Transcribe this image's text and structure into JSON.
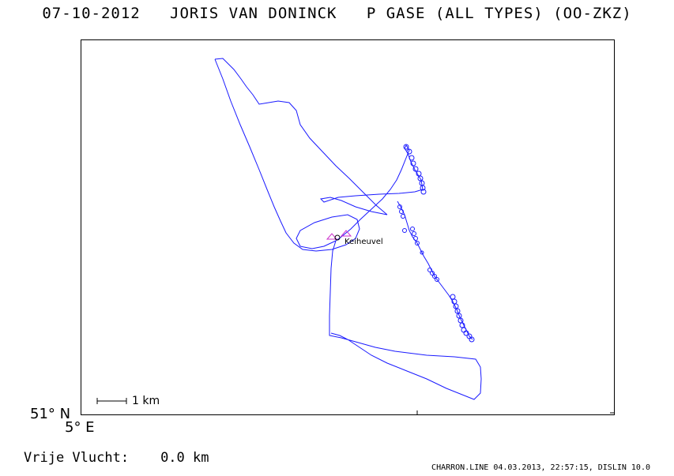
{
  "header": {
    "title": "07-10-2012   JORIS VAN DONINCK   P GASE (ALL TYPES) (OO-ZKZ)"
  },
  "map": {
    "lat_label": "51° N",
    "lon_label": "5° E",
    "scale_label": "1 km",
    "place_label": "Keiheuvel",
    "track_color": "#1a1aff",
    "marker_color": "#cc33cc"
  },
  "footer": {
    "distance_label": "Vrije Vlucht:",
    "distance_value": "0.0 km",
    "credit": "CHARRON.LINE 04.03.2013, 22:57:15, DISLIN 10.0"
  }
}
